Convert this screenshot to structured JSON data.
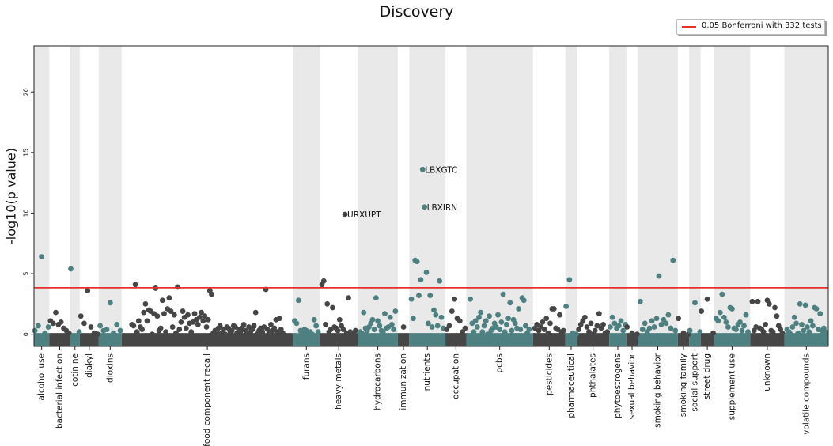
{
  "chart_data": {
    "type": "scatter",
    "title": "Discovery",
    "ylabel": "-log10(p value)",
    "xlabel": "",
    "ylim": [
      -1,
      23.8
    ],
    "yticks": [
      0,
      5,
      10,
      15,
      20
    ],
    "grid": false,
    "legend_position": "top-right",
    "threshold": {
      "label": "0.05 Bonferroni with 332 tests",
      "value": 3.84,
      "color": "#e8302a"
    },
    "colors": {
      "dark": "#464646",
      "teal": "#4e8082",
      "band": "#e9e9e9"
    },
    "categories": [
      "alcohol use",
      "bacterial infection",
      "cotinine",
      "diakyl",
      "dioxins",
      "food component recall",
      "furans",
      "heavy metals",
      "hydrocarbons",
      "immunization",
      "nutrients",
      "occupation",
      "pcbs",
      "pesticides",
      "pharmaceutical",
      "phthalates",
      "phytoestrogens",
      "sexual behavior",
      "smoking behavior",
      "smoking family",
      "social support",
      "street drug",
      "supplement use",
      "unknown",
      "volatile compounds"
    ],
    "category_ranges": [
      [
        0,
        8
      ],
      [
        8,
        19
      ],
      [
        19,
        24
      ],
      [
        24,
        34
      ],
      [
        34,
        46
      ],
      [
        46,
        136
      ],
      [
        136,
        150
      ],
      [
        150,
        170
      ],
      [
        170,
        191
      ],
      [
        191,
        197
      ],
      [
        197,
        216
      ],
      [
        216,
        227
      ],
      [
        227,
        262
      ],
      [
        262,
        279
      ],
      [
        279,
        285
      ],
      [
        285,
        302
      ],
      [
        302,
        311
      ],
      [
        311,
        317
      ],
      [
        317,
        338
      ],
      [
        338,
        344
      ],
      [
        344,
        350
      ],
      [
        350,
        357
      ],
      [
        357,
        376
      ],
      [
        376,
        394
      ],
      [
        394,
        417
      ]
    ],
    "total": 417,
    "points": {
      "alcohol use": [
        0.3,
        0.7,
        6.4,
        0.1,
        0.6
      ],
      "bacterial infection": [
        1.1,
        0.9,
        1.8,
        0.8,
        1.0,
        0.5,
        0.3,
        0.1
      ],
      "cotinine": [
        5.4,
        0.2
      ],
      "diakyl": [
        1.5,
        0.9,
        3.6,
        0.6,
        0.1,
        0.0
      ],
      "dioxins": [
        0.7,
        0.3,
        0.4,
        2.6,
        0.1,
        0.8,
        0.3
      ],
      "food component recall": [
        0.8,
        0.7,
        4.1,
        0.2,
        1.1,
        0.6,
        0.4,
        1.8,
        2.5,
        1.1,
        2.0,
        1.9,
        0.0,
        1.7,
        3.8,
        1.5,
        0.3,
        0.5,
        2.8,
        1.7,
        0.2,
        2.1,
        3.0,
        1.9,
        0.6,
        1.6,
        0.1,
        3.9,
        0.4,
        1.0,
        1.9,
        1.4,
        0.5,
        1.6,
        0.9,
        0.2,
        1.0,
        1.7,
        1.2,
        0.8,
        1.4,
        1.8,
        1.1,
        1.5,
        0.6,
        1.2,
        3.6,
        3.3,
        0.1,
        0.3,
        0.2,
        0.5,
        0.7,
        0.1,
        0.4,
        0.0,
        0.6,
        0.5,
        0.2,
        0.3,
        0.7,
        0.6,
        0.1,
        0.4,
        0.2,
        0.5,
        0.8,
        0.3,
        0.0,
        0.6,
        0.2,
        0.4,
        0.7,
        1.8,
        0.1,
        0.3,
        0.5,
        0.2,
        0.6,
        3.7,
        0.4,
        0.1,
        0.8,
        0.3,
        0.5,
        1.2,
        0.2,
        1.3,
        0.4,
        0.1
      ],
      "furans": [
        1.1,
        0.9,
        2.8,
        0.3,
        0.2,
        0.4,
        0.3,
        0.1,
        0.2,
        0.0,
        1.2,
        0.7,
        0.2
      ],
      "heavy metals": [
        4.1,
        4.4,
        0.8,
        2.5,
        0.2,
        0.4,
        2.2,
        0.6,
        0.5,
        0.3,
        1.2,
        0.7,
        0.4,
        9.9,
        0.1,
        3.0,
        0.2,
        0.1,
        0.0,
        0.3
      ],
      "hydrocarbons": [
        0.2,
        0.1,
        1.8,
        0.5,
        0.3,
        0.6,
        0.9,
        1.2,
        0.4,
        3.0,
        1.1,
        0.7,
        0.3,
        0.2,
        1.7,
        0.5,
        0.6,
        1.4,
        0.8,
        0.4,
        1.9
      ],
      "immunization": [
        0.6
      ],
      "nutrients": [
        2.9,
        1.3,
        6.1,
        6.0,
        3.2,
        4.5,
        13.6,
        10.5,
        5.1,
        0.9,
        3.2,
        0.6,
        2.0,
        1.6,
        0.7,
        4.4,
        1.4,
        0.5
      ],
      "occupation": [
        0.4,
        0.7,
        1.9,
        2.9,
        1.3,
        1.1,
        0.2,
        0.5
      ],
      "pcbs": [
        2.9,
        0.9,
        0.2,
        1.1,
        0.6,
        1.4,
        1.8,
        0.2,
        0.7,
        1.1,
        0.0,
        1.5,
        0.3,
        0.5,
        0.9,
        0.6,
        1.6,
        0.4,
        1.0,
        3.3,
        0.2,
        0.8,
        1.3,
        2.6,
        0.3,
        1.2,
        0.9,
        0.5,
        2.1,
        0.4,
        3.0,
        2.8,
        0.7,
        0.1,
        0.4
      ],
      "pesticides": [
        0.5,
        0.8,
        0.3,
        0.6,
        1.0,
        0.4,
        1.3,
        0.1,
        0.9,
        2.1,
        2.1,
        0.5,
        0.4,
        1.6,
        0.2,
        0.3
      ],
      "pharmaceutical": [
        2.3,
        4.5,
        0.1,
        0.0
      ],
      "phthalates": [
        0.4,
        0.8,
        1.1,
        1.4,
        0.6,
        0.2,
        0.9,
        0.0,
        0.3,
        0.7,
        1.7,
        0.5,
        0.8,
        0.1,
        0.2
      ],
      "phytoestrogens": [
        0.6,
        1.4,
        0.9,
        0.5,
        0.7,
        1.1,
        0.3,
        0.8
      ],
      "sexual behavior": [
        0.6,
        0.1,
        0.0
      ],
      "smoking behavior": [
        2.7,
        0.4,
        0.9,
        0.2,
        0.5,
        1.1,
        0.6,
        1.3,
        4.8,
        0.8,
        1.2,
        0.9,
        1.6,
        0.5,
        6.1,
        0.3
      ],
      "smoking family": [
        1.3,
        0.1,
        0.0
      ],
      "social support": [
        0.3,
        2.6,
        0.2
      ],
      "street drug": [
        1.9,
        2.9,
        0.1
      ],
      "supplement use": [
        1.3,
        1.1,
        1.8,
        3.3,
        1.4,
        1.0,
        0.6,
        2.2,
        2.1,
        0.5,
        0.4,
        0.8,
        1.0,
        0.3,
        0.7,
        1.6,
        0.2
      ],
      "unknown": [
        2.7,
        0.3,
        0.6,
        2.7,
        0.5,
        0.4,
        0.2,
        0.8,
        2.8,
        2.5,
        0.3,
        0.2,
        2.2,
        1.5,
        0.7,
        0.4,
        0.1
      ],
      "volatile compounds": [
        0.4,
        0.2,
        0.0,
        0.6,
        1.4,
        0.9,
        0.1,
        2.5,
        0.8,
        0.3,
        2.4,
        0.6,
        0.2,
        1.1,
        0.7,
        2.2,
        2.1,
        0.4,
        1.7,
        0.3,
        0.5,
        0.2
      ]
    },
    "annotations": [
      {
        "label": "LBXGTC",
        "category": "nutrients",
        "index": 6
      },
      {
        "label": "LBXIRN",
        "category": "nutrients",
        "index": 7
      },
      {
        "label": "URXUPT",
        "category": "heavy metals",
        "index": 13
      }
    ]
  }
}
